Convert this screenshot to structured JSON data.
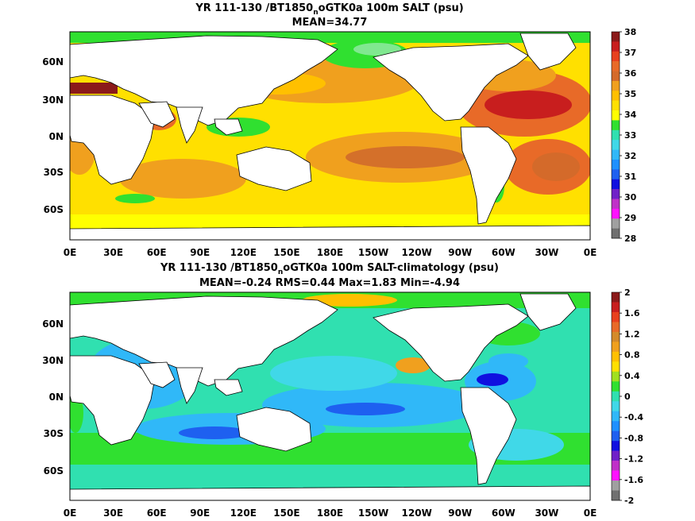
{
  "figure": {
    "panels": [
      {
        "id": "top",
        "title_line1_pre": "YR 111-130 /BT1850",
        "title_line1_sub": "n",
        "title_line1_post": "oGTK0a 100m SALT (psu)",
        "title_line2": "MEAN=34.77",
        "lat_ticks": [
          "60N",
          "30N",
          "0N",
          "30S",
          "60S"
        ],
        "lon_ticks": [
          "0E",
          "30E",
          "60E",
          "90E",
          "120E",
          "150E",
          "180E",
          "150W",
          "120W",
          "90W",
          "60W",
          "30W",
          "0E"
        ],
        "colorbar": {
          "labels": [
            "38",
            "37",
            "36",
            "35",
            "34",
            "33",
            "32",
            "31",
            "30",
            "29",
            "28"
          ],
          "colors": [
            "#8b1a1a",
            "#c81e1e",
            "#e8401e",
            "#e86a28",
            "#d46a2a",
            "#f0a01e",
            "#ffc000",
            "#ffe000",
            "#ffff00",
            "#30e030",
            "#30e0b0",
            "#40d8e8",
            "#30b8f8",
            "#1e90ff",
            "#1e60f0",
            "#1010e0",
            "#7020c8",
            "#c030c8",
            "#ff10ff",
            "#a0a0a0",
            "#707070"
          ]
        }
      },
      {
        "id": "bottom",
        "title_line1_pre": "YR 111-130 /BT1850",
        "title_line1_sub": "n",
        "title_line1_post": "oGTK0a 100m SALT-climatology (psu)",
        "title_line2": "MEAN=-0.24   RMS=0.44   Max=1.83   Min=-4.94",
        "lat_ticks": [
          "60N",
          "30N",
          "0N",
          "30S",
          "60S"
        ],
        "lon_ticks": [
          "0E",
          "30E",
          "60E",
          "90E",
          "120E",
          "150E",
          "180E",
          "150W",
          "120W",
          "90W",
          "60W",
          "30W",
          "0E"
        ],
        "colorbar": {
          "labels": [
            "2",
            "1.6",
            "1.2",
            "0.8",
            "0.4",
            "0",
            "-0.4",
            "-0.8",
            "-1.2",
            "-1.6",
            "-2"
          ],
          "colors": [
            "#8b1a1a",
            "#c81e1e",
            "#e8401e",
            "#e86a28",
            "#d48a2a",
            "#f0a01e",
            "#ffc000",
            "#ffe000",
            "#a0e020",
            "#30e030",
            "#30e0b0",
            "#40d8e8",
            "#30b8f8",
            "#1e90ff",
            "#1e60f0",
            "#1010e0",
            "#7020c8",
            "#c030c8",
            "#ff10ff",
            "#a0a0a0",
            "#707070"
          ]
        }
      }
    ]
  }
}
